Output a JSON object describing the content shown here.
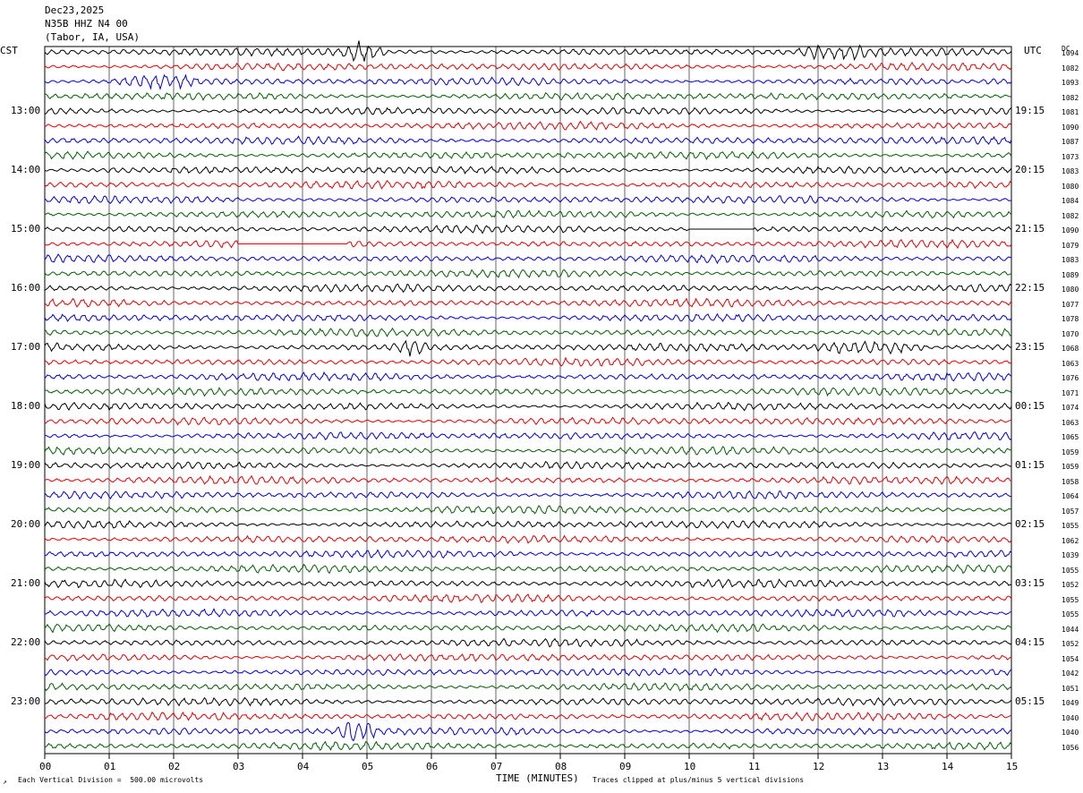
{
  "header": {
    "date": "Dec23,2025",
    "station": "N35B HHZ N4 00",
    "location": "(Tabor, IA, USA)"
  },
  "left_timezone": "CST",
  "right_timezone": "UTC",
  "dc_label": "DC",
  "left_hour_labels": [
    "13:00",
    "14:00",
    "15:00",
    "16:00",
    "17:00",
    "18:00",
    "19:00",
    "20:00",
    "21:00",
    "22:00",
    "23:00"
  ],
  "right_hour_labels": [
    "19:15",
    "20:15",
    "21:15",
    "22:15",
    "23:15",
    "00:15",
    "01:15",
    "02:15",
    "03:15",
    "04:15",
    "05:15"
  ],
  "dc_offsets": [
    "1094",
    "1082",
    "1093",
    "1082",
    "1081",
    "1090",
    "1087",
    "1073",
    "1083",
    "1080",
    "1084",
    "1082",
    "1090",
    "1079",
    "1083",
    "1089",
    "1080",
    "1077",
    "1078",
    "1070",
    "1068",
    "1063",
    "1076",
    "1071",
    "1074",
    "1063",
    "1065",
    "1059",
    "1059",
    "1058",
    "1064",
    "1057",
    "1055",
    "1062",
    "1039",
    "1055",
    "1052",
    "1055",
    "1055",
    "1044",
    "1052",
    "1054",
    "1042",
    "1051",
    "1049",
    "1040",
    "1040",
    "1056"
  ],
  "footer": {
    "vertical_division": "Each Vertical Division =  500.00 microvolts",
    "x_title": "TIME (MINUTES)",
    "clip_note": "Traces clipped at plus/minus 5 vertical divisions"
  },
  "chart_data": {
    "type": "line",
    "title": "N35B HHZ N4 00",
    "xlabel": "TIME (MINUTES)",
    "ylabel": "",
    "xlim": [
      0,
      15
    ],
    "x_ticks": [
      "00",
      "01",
      "02",
      "03",
      "04",
      "05",
      "06",
      "07",
      "08",
      "09",
      "10",
      "11",
      "12",
      "13",
      "14",
      "15"
    ],
    "rows_per_hour": 4,
    "row_count": 48,
    "trace_colors": [
      "#000000",
      "#e00000",
      "#0000d0",
      "#006000"
    ],
    "grid": true,
    "events": [
      {
        "row": 0,
        "minute_start": 4.6,
        "minute_end": 5.3,
        "amplitude": 3.0
      },
      {
        "row": 0,
        "minute_start": 11.5,
        "minute_end": 13.0,
        "amplitude": 1.8
      },
      {
        "row": 2,
        "minute_start": 1.0,
        "minute_end": 2.5,
        "amplitude": 2.0
      },
      {
        "row": 20,
        "minute_start": 5.3,
        "minute_end": 6.0,
        "amplitude": 2.0
      },
      {
        "row": 20,
        "minute_start": 11.8,
        "minute_end": 13.8,
        "amplitude": 2.0
      },
      {
        "row": 46,
        "minute_start": 4.5,
        "minute_end": 5.2,
        "amplitude": 3.5
      }
    ],
    "gaps": [
      {
        "row": 12,
        "minute_start": 10.0,
        "minute_end": 11.0
      },
      {
        "row": 13,
        "minute_start": 3.0,
        "minute_end": 4.7
      }
    ]
  }
}
